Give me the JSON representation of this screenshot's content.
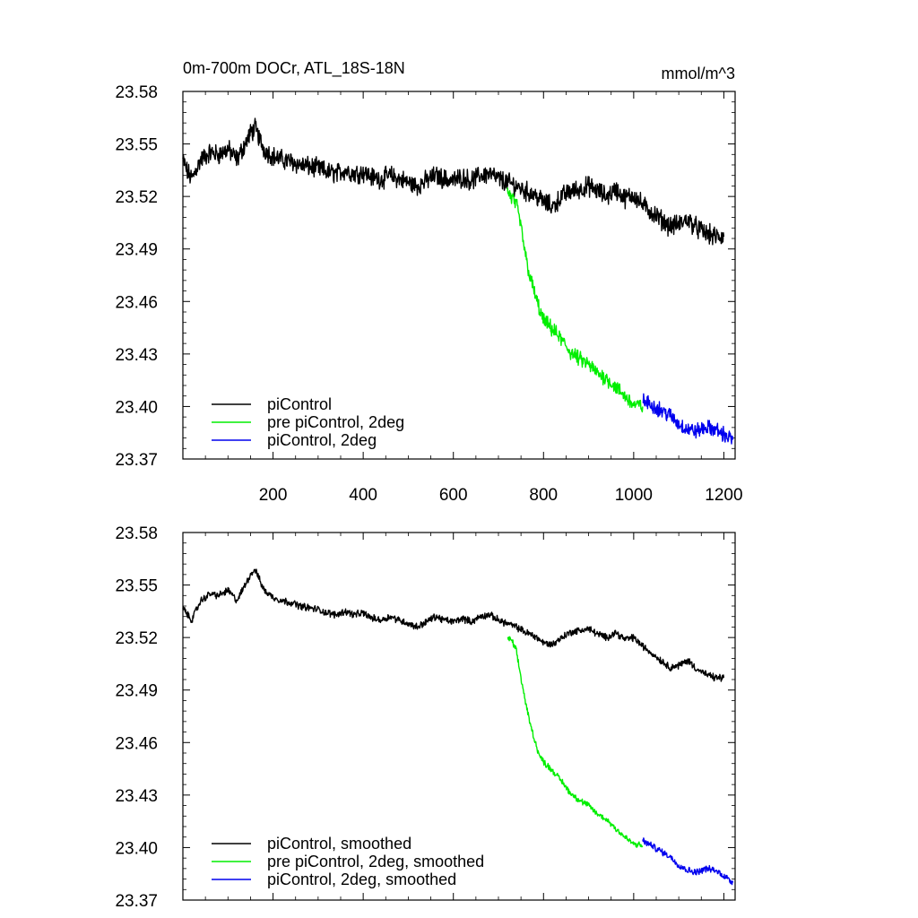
{
  "chart_data": [
    {
      "type": "line",
      "title": "0m-700m DOCr, ATL_18S-18N",
      "units": "mmol/m^3",
      "xlabel": "",
      "ylabel": "",
      "xlim": [
        0,
        1225
      ],
      "ylim": [
        23.37,
        23.58
      ],
      "xticks": [
        200,
        400,
        600,
        800,
        1000,
        1200
      ],
      "xtick_labels": [
        "200",
        "400",
        "600",
        "800",
        "1000",
        "1200"
      ],
      "yticks": [
        23.37,
        23.4,
        23.43,
        23.46,
        23.49,
        23.52,
        23.55,
        23.58
      ],
      "ytick_labels": [
        "23.37",
        "23.40",
        "23.43",
        "23.46",
        "23.49",
        "23.52",
        "23.55",
        "23.58"
      ],
      "legend_position": "bottom-left",
      "series": [
        {
          "name": "piControl",
          "color": "#000000",
          "noise": 0.0045,
          "x": [
            0,
            10,
            20,
            30,
            40,
            50,
            60,
            80,
            100,
            120,
            140,
            150,
            160,
            170,
            180,
            200,
            220,
            240,
            260,
            280,
            300,
            320,
            340,
            360,
            380,
            400,
            420,
            440,
            460,
            480,
            500,
            520,
            540,
            560,
            580,
            600,
            620,
            640,
            660,
            680,
            700,
            720,
            740,
            760,
            780,
            800,
            820,
            840,
            860,
            880,
            900,
            920,
            940,
            960,
            980,
            1000,
            1020,
            1040,
            1060,
            1080,
            1100,
            1120,
            1140,
            1160,
            1180,
            1200
          ],
          "values": [
            23.541,
            23.534,
            23.53,
            23.536,
            23.541,
            23.543,
            23.545,
            23.544,
            23.547,
            23.541,
            23.551,
            23.556,
            23.559,
            23.553,
            23.547,
            23.543,
            23.541,
            23.54,
            23.538,
            23.537,
            23.536,
            23.534,
            23.533,
            23.535,
            23.533,
            23.534,
            23.531,
            23.53,
            23.532,
            23.53,
            23.528,
            23.526,
            23.529,
            23.532,
            23.53,
            23.529,
            23.531,
            23.529,
            23.532,
            23.533,
            23.53,
            23.528,
            23.526,
            23.523,
            23.521,
            23.517,
            23.514,
            23.52,
            23.523,
            23.524,
            23.526,
            23.523,
            23.52,
            23.524,
            23.519,
            23.521,
            23.515,
            23.511,
            23.507,
            23.503,
            23.504,
            23.507,
            23.502,
            23.499,
            23.497,
            23.497
          ]
        },
        {
          "name": "pre piControl, 2deg",
          "color": "#00ee00",
          "noise": 0.0035,
          "x": [
            720,
            730,
            740,
            750,
            760,
            770,
            780,
            790,
            800,
            820,
            840,
            860,
            880,
            900,
            920,
            940,
            960,
            980,
            1000,
            1020
          ],
          "values": [
            23.523,
            23.519,
            23.515,
            23.503,
            23.486,
            23.474,
            23.465,
            23.456,
            23.449,
            23.444,
            23.438,
            23.431,
            23.427,
            23.424,
            23.419,
            23.416,
            23.411,
            23.406,
            23.401,
            23.4
          ]
        },
        {
          "name": "piControl, 2deg",
          "color": "#0000ee",
          "noise": 0.0035,
          "x": [
            1020,
            1040,
            1060,
            1080,
            1100,
            1120,
            1140,
            1160,
            1180,
            1200,
            1220
          ],
          "values": [
            23.403,
            23.401,
            23.398,
            23.395,
            23.39,
            23.387,
            23.386,
            23.388,
            23.387,
            23.384,
            23.381
          ]
        }
      ]
    },
    {
      "type": "line",
      "title": "",
      "xlabel": "",
      "ylabel": "",
      "xlim": [
        0,
        1225
      ],
      "ylim": [
        23.37,
        23.58
      ],
      "yticks": [
        23.37,
        23.4,
        23.43,
        23.46,
        23.49,
        23.52,
        23.55,
        23.58
      ],
      "ytick_labels": [
        "23.37",
        "23.40",
        "23.43",
        "23.46",
        "23.49",
        "23.52",
        "23.55",
        "23.58"
      ],
      "legend_position": "bottom-left",
      "series": [
        {
          "name": "piControl, smoothed",
          "color": "#000000",
          "noise": 0.0016,
          "x": [
            0,
            10,
            20,
            30,
            40,
            50,
            60,
            80,
            100,
            120,
            140,
            150,
            160,
            170,
            180,
            200,
            220,
            240,
            260,
            280,
            300,
            320,
            340,
            360,
            380,
            400,
            420,
            440,
            460,
            480,
            500,
            520,
            540,
            560,
            580,
            600,
            620,
            640,
            660,
            680,
            700,
            720,
            740,
            760,
            780,
            800,
            820,
            840,
            860,
            880,
            900,
            920,
            940,
            960,
            980,
            1000,
            1020,
            1040,
            1060,
            1080,
            1100,
            1120,
            1140,
            1160,
            1180,
            1200
          ],
          "values": [
            23.537,
            23.533,
            23.53,
            23.536,
            23.541,
            23.543,
            23.545,
            23.544,
            23.547,
            23.541,
            23.551,
            23.556,
            23.559,
            23.553,
            23.547,
            23.543,
            23.541,
            23.54,
            23.538,
            23.537,
            23.536,
            23.534,
            23.533,
            23.535,
            23.533,
            23.534,
            23.531,
            23.53,
            23.532,
            23.53,
            23.528,
            23.526,
            23.529,
            23.532,
            23.53,
            23.529,
            23.531,
            23.529,
            23.532,
            23.533,
            23.53,
            23.528,
            23.526,
            23.523,
            23.521,
            23.517,
            23.516,
            23.52,
            23.523,
            23.524,
            23.525,
            23.522,
            23.52,
            23.523,
            23.519,
            23.52,
            23.515,
            23.511,
            23.507,
            23.503,
            23.504,
            23.507,
            23.502,
            23.499,
            23.497,
            23.497
          ]
        },
        {
          "name": "pre piControl, 2deg, smoothed",
          "color": "#00ee00",
          "noise": 0.0014,
          "x": [
            720,
            730,
            740,
            750,
            760,
            770,
            780,
            790,
            800,
            820,
            840,
            860,
            880,
            900,
            920,
            940,
            960,
            980,
            1000,
            1020
          ],
          "values": [
            23.52,
            23.518,
            23.512,
            23.497,
            23.483,
            23.471,
            23.462,
            23.453,
            23.449,
            23.444,
            23.438,
            23.431,
            23.427,
            23.424,
            23.419,
            23.416,
            23.411,
            23.406,
            23.402,
            23.401
          ]
        },
        {
          "name": "piControl, 2deg, smoothed",
          "color": "#0000ee",
          "noise": 0.0015,
          "x": [
            1020,
            1040,
            1060,
            1080,
            1100,
            1120,
            1140,
            1160,
            1180,
            1200,
            1220
          ],
          "values": [
            23.404,
            23.401,
            23.398,
            23.395,
            23.39,
            23.387,
            23.386,
            23.388,
            23.387,
            23.384,
            23.38
          ]
        }
      ]
    }
  ]
}
